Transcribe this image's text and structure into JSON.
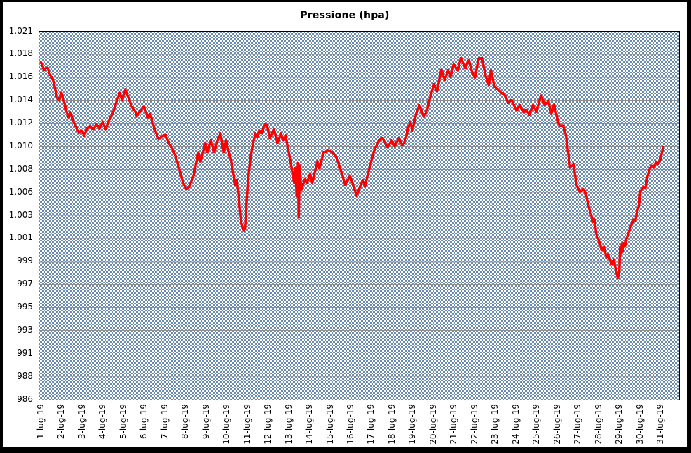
{
  "title": "Pressione (hpa)",
  "colors": {
    "line": "#ff0000",
    "grid": "#8f8f8f",
    "plot_checker_blue": "#6a8bb1",
    "plot_checker_white": "#ffffff",
    "frame": "#000000",
    "text": "#000000"
  },
  "chart_data": {
    "type": "line",
    "title": "Pressione (hpa)",
    "xlabel": "",
    "ylabel": "",
    "y_unit": "hPa",
    "legend": "none",
    "grid": "horizontal solid gray lines, dithered blue checkerboard plot background",
    "y_axis_range": [
      986,
      1021
    ],
    "x_axis_range_days": [
      1,
      31.95
    ],
    "y_tick_labels": [
      "1.021",
      "1.018",
      "1.016",
      "1.014",
      "1.012",
      "1.010",
      "1.008",
      "1.006",
      "1.003",
      "1.001",
      "999",
      "997",
      "995",
      "993",
      "991",
      "988",
      "986"
    ],
    "x_tick_labels": [
      "1-lug-19",
      "2-lug-19",
      "3-lug-19",
      "4-lug-19",
      "5-lug-19",
      "6-lug-19",
      "7-lug-19",
      "8-lug-19",
      "9-lug-19",
      "10-lug-19",
      "11-lug-19",
      "12-lug-19",
      "13-lug-19",
      "14-lug-19",
      "15-lug-19",
      "16-lug-19",
      "17-lug-19",
      "18-lug-19",
      "19-lug-19",
      "20-lug-19",
      "21-lug-19",
      "22-lug-19",
      "23-lug-19",
      "24-lug-19",
      "25-lug-19",
      "26-lug-19",
      "27-lug-19",
      "28-lug-19",
      "29-lug-19",
      "30-lug-19",
      "31-lug-19"
    ],
    "series": [
      {
        "name": "Pressione",
        "color": "#ff0000",
        "points": [
          [
            1.0,
            1018.1
          ],
          [
            1.08,
            1017.8
          ],
          [
            1.16,
            1017.3
          ],
          [
            1.25,
            1017.5
          ],
          [
            1.33,
            1017.6
          ],
          [
            1.45,
            1016.9
          ],
          [
            1.6,
            1016.4
          ],
          [
            1.7,
            1015.6
          ],
          [
            1.78,
            1014.8
          ],
          [
            1.9,
            1014.5
          ],
          [
            2.0,
            1015.2
          ],
          [
            2.08,
            1014.7
          ],
          [
            2.15,
            1014.2
          ],
          [
            2.25,
            1013.4
          ],
          [
            2.35,
            1012.8
          ],
          [
            2.45,
            1013.3
          ],
          [
            2.6,
            1012.4
          ],
          [
            2.7,
            1012.0
          ],
          [
            2.85,
            1011.4
          ],
          [
            3.0,
            1011.6
          ],
          [
            3.1,
            1011.1
          ],
          [
            3.25,
            1011.8
          ],
          [
            3.4,
            1012.0
          ],
          [
            3.55,
            1011.7
          ],
          [
            3.7,
            1012.2
          ],
          [
            3.85,
            1011.8
          ],
          [
            4.0,
            1012.4
          ],
          [
            4.15,
            1011.7
          ],
          [
            4.3,
            1012.5
          ],
          [
            4.5,
            1013.3
          ],
          [
            4.65,
            1014.2
          ],
          [
            4.83,
            1015.2
          ],
          [
            4.94,
            1014.5
          ],
          [
            5.1,
            1015.5
          ],
          [
            5.24,
            1014.8
          ],
          [
            5.4,
            1013.9
          ],
          [
            5.58,
            1013.4
          ],
          [
            5.65,
            1012.95
          ],
          [
            5.85,
            1013.5
          ],
          [
            6.0,
            1013.9
          ],
          [
            6.2,
            1012.8
          ],
          [
            6.3,
            1013.2
          ],
          [
            6.5,
            1011.8
          ],
          [
            6.7,
            1010.8
          ],
          [
            6.85,
            1011.0
          ],
          [
            7.05,
            1011.2
          ],
          [
            7.2,
            1010.4
          ],
          [
            7.34,
            1010.0
          ],
          [
            7.5,
            1009.3
          ],
          [
            7.7,
            1008.0
          ],
          [
            7.9,
            1006.6
          ],
          [
            8.05,
            1006.0
          ],
          [
            8.2,
            1006.3
          ],
          [
            8.4,
            1007.3
          ],
          [
            8.63,
            1009.5
          ],
          [
            8.73,
            1008.6
          ],
          [
            8.97,
            1010.4
          ],
          [
            9.07,
            1009.5
          ],
          [
            9.24,
            1010.7
          ],
          [
            9.4,
            1009.5
          ],
          [
            9.55,
            1010.6
          ],
          [
            9.7,
            1011.3
          ],
          [
            9.87,
            1009.5
          ],
          [
            9.98,
            1010.65
          ],
          [
            10.1,
            1009.6
          ],
          [
            10.2,
            1008.9
          ],
          [
            10.3,
            1007.8
          ],
          [
            10.42,
            1006.4
          ],
          [
            10.5,
            1006.9
          ],
          [
            10.6,
            1005.1
          ],
          [
            10.7,
            1003.0
          ],
          [
            10.78,
            1002.4
          ],
          [
            10.85,
            1002.1
          ],
          [
            10.9,
            1002.3
          ],
          [
            10.95,
            1004.0
          ],
          [
            11.05,
            1007.0
          ],
          [
            11.17,
            1009.1
          ],
          [
            11.3,
            1010.5
          ],
          [
            11.4,
            1011.3
          ],
          [
            11.5,
            1011.0
          ],
          [
            11.6,
            1011.6
          ],
          [
            11.7,
            1011.3
          ],
          [
            11.85,
            1012.2
          ],
          [
            11.96,
            1012.1
          ],
          [
            12.1,
            1010.9
          ],
          [
            12.3,
            1011.7
          ],
          [
            12.47,
            1010.4
          ],
          [
            12.64,
            1011.3
          ],
          [
            12.74,
            1010.65
          ],
          [
            12.86,
            1011.1
          ],
          [
            12.97,
            1010.0
          ],
          [
            13.1,
            1008.65
          ],
          [
            13.2,
            1007.5
          ],
          [
            13.28,
            1006.6
          ],
          [
            13.34,
            1008.0
          ],
          [
            13.4,
            1005.3
          ],
          [
            13.46,
            1008.5
          ],
          [
            13.5,
            1003.3
          ],
          [
            13.54,
            1008.3
          ],
          [
            13.62,
            1005.9
          ],
          [
            13.7,
            1006.4
          ],
          [
            13.8,
            1007.0
          ],
          [
            13.9,
            1006.6
          ],
          [
            14.05,
            1007.5
          ],
          [
            14.15,
            1006.6
          ],
          [
            14.4,
            1008.65
          ],
          [
            14.5,
            1008.0
          ],
          [
            14.7,
            1009.5
          ],
          [
            14.9,
            1009.7
          ],
          [
            15.1,
            1009.6
          ],
          [
            15.34,
            1009.0
          ],
          [
            15.6,
            1007.4
          ],
          [
            15.75,
            1006.4
          ],
          [
            15.97,
            1007.3
          ],
          [
            16.1,
            1006.6
          ],
          [
            16.3,
            1005.4
          ],
          [
            16.6,
            1006.9
          ],
          [
            16.7,
            1006.3
          ],
          [
            16.93,
            1008.1
          ],
          [
            17.15,
            1009.7
          ],
          [
            17.4,
            1010.7
          ],
          [
            17.55,
            1010.9
          ],
          [
            17.8,
            1010.0
          ],
          [
            18.0,
            1010.65
          ],
          [
            18.14,
            1010.1
          ],
          [
            18.35,
            1010.9
          ],
          [
            18.5,
            1010.2
          ],
          [
            18.6,
            1010.4
          ],
          [
            18.7,
            1011.0
          ],
          [
            18.8,
            1011.9
          ],
          [
            18.9,
            1012.4
          ],
          [
            19.0,
            1011.6
          ],
          [
            19.17,
            1013.1
          ],
          [
            19.34,
            1014.0
          ],
          [
            19.54,
            1012.95
          ],
          [
            19.68,
            1013.3
          ],
          [
            19.88,
            1014.9
          ],
          [
            20.05,
            1016.0
          ],
          [
            20.19,
            1015.3
          ],
          [
            20.4,
            1017.4
          ],
          [
            20.56,
            1016.4
          ],
          [
            20.73,
            1017.3
          ],
          [
            20.85,
            1016.7
          ],
          [
            21.0,
            1017.9
          ],
          [
            21.2,
            1017.3
          ],
          [
            21.35,
            1018.5
          ],
          [
            21.56,
            1017.5
          ],
          [
            21.73,
            1018.3
          ],
          [
            21.9,
            1017.1
          ],
          [
            22.03,
            1016.6
          ],
          [
            22.2,
            1018.4
          ],
          [
            22.37,
            1018.5
          ],
          [
            22.54,
            1016.85
          ],
          [
            22.7,
            1015.9
          ],
          [
            22.8,
            1017.3
          ],
          [
            22.97,
            1015.8
          ],
          [
            23.14,
            1015.5
          ],
          [
            23.3,
            1015.2
          ],
          [
            23.47,
            1015.0
          ],
          [
            23.64,
            1014.2
          ],
          [
            23.8,
            1014.5
          ],
          [
            24.05,
            1013.5
          ],
          [
            24.2,
            1014.0
          ],
          [
            24.4,
            1013.3
          ],
          [
            24.5,
            1013.6
          ],
          [
            24.66,
            1013.1
          ],
          [
            24.84,
            1014.0
          ],
          [
            25.0,
            1013.4
          ],
          [
            25.24,
            1014.95
          ],
          [
            25.4,
            1014.0
          ],
          [
            25.58,
            1014.4
          ],
          [
            25.73,
            1013.2
          ],
          [
            25.86,
            1014.1
          ],
          [
            26.03,
            1012.6
          ],
          [
            26.13,
            1012.0
          ],
          [
            26.3,
            1012.1
          ],
          [
            26.44,
            1011.1
          ],
          [
            26.54,
            1009.5
          ],
          [
            26.64,
            1008.1
          ],
          [
            26.8,
            1008.4
          ],
          [
            26.95,
            1006.4
          ],
          [
            27.1,
            1005.8
          ],
          [
            27.3,
            1006.0
          ],
          [
            27.4,
            1005.6
          ],
          [
            27.5,
            1004.65
          ],
          [
            27.64,
            1003.65
          ],
          [
            27.75,
            1002.9
          ],
          [
            27.82,
            1003.1
          ],
          [
            27.9,
            1001.8
          ],
          [
            28.07,
            1000.9
          ],
          [
            28.17,
            1000.2
          ],
          [
            28.27,
            1000.55
          ],
          [
            28.4,
            999.5
          ],
          [
            28.48,
            999.8
          ],
          [
            28.64,
            998.9
          ],
          [
            28.75,
            999.3
          ],
          [
            28.85,
            998.4
          ],
          [
            28.95,
            997.55
          ],
          [
            29.02,
            998.2
          ],
          [
            29.06,
            1000.5
          ],
          [
            29.1,
            999.9
          ],
          [
            29.14,
            1000.8
          ],
          [
            29.18,
            1000.1
          ],
          [
            29.24,
            1000.9
          ],
          [
            29.3,
            1000.6
          ],
          [
            29.36,
            1001.3
          ],
          [
            29.46,
            1001.8
          ],
          [
            29.6,
            1002.6
          ],
          [
            29.7,
            1003.1
          ],
          [
            29.8,
            1003.0
          ],
          [
            29.87,
            1003.8
          ],
          [
            29.97,
            1004.5
          ],
          [
            30.04,
            1005.8
          ],
          [
            30.17,
            1006.2
          ],
          [
            30.28,
            1006.1
          ],
          [
            30.38,
            1007.2
          ],
          [
            30.5,
            1008.0
          ],
          [
            30.6,
            1008.3
          ],
          [
            30.7,
            1008.1
          ],
          [
            30.8,
            1008.6
          ],
          [
            30.9,
            1008.4
          ],
          [
            31.0,
            1008.8
          ],
          [
            31.07,
            1009.4
          ],
          [
            31.14,
            1010.0
          ]
        ]
      }
    ]
  }
}
